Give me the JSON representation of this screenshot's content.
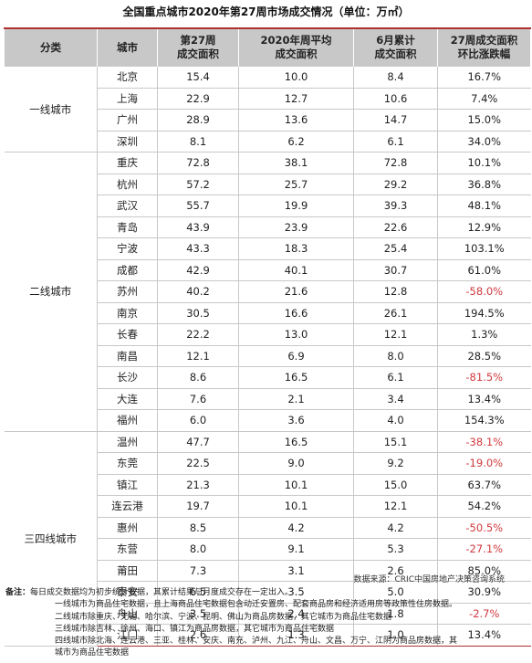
{
  "title": "全国重点城市2020年第27周市场成交情况（单位：万㎡）",
  "headers": {
    "category": "分类",
    "city": "城市",
    "week27": [
      "第27周",
      "成交面积"
    ],
    "weekly_avg": [
      "2020年周平均",
      "成交面积"
    ],
    "june_cum": [
      "6月累计",
      "成交面积"
    ],
    "change": [
      "27周成交面积",
      "环比涨跌幅"
    ]
  },
  "groups": [
    {
      "name": "一线城市",
      "rows": [
        {
          "city": "北京",
          "week27": "15.4",
          "avg": "10.0",
          "june": "8.4",
          "change": "16.7%",
          "negative": false
        },
        {
          "city": "上海",
          "week27": "22.9",
          "avg": "12.7",
          "june": "10.6",
          "change": "7.4%",
          "negative": false
        },
        {
          "city": "广州",
          "week27": "28.9",
          "avg": "13.6",
          "june": "14.7",
          "change": "15.0%",
          "negative": false
        },
        {
          "city": "深圳",
          "week27": "8.1",
          "avg": "6.2",
          "june": "6.1",
          "change": "34.0%",
          "negative": false
        }
      ]
    },
    {
      "name": "二线城市",
      "rows": [
        {
          "city": "重庆",
          "week27": "72.8",
          "avg": "38.1",
          "june": "72.8",
          "change": "10.1%",
          "negative": false
        },
        {
          "city": "杭州",
          "week27": "57.2",
          "avg": "25.7",
          "june": "29.2",
          "change": "36.8%",
          "negative": false
        },
        {
          "city": "武汉",
          "week27": "55.7",
          "avg": "19.9",
          "june": "39.3",
          "change": "48.1%",
          "negative": false
        },
        {
          "city": "青岛",
          "week27": "43.9",
          "avg": "23.9",
          "june": "22.6",
          "change": "12.9%",
          "negative": false
        },
        {
          "city": "宁波",
          "week27": "43.3",
          "avg": "18.3",
          "june": "25.4",
          "change": "103.1%",
          "negative": false
        },
        {
          "city": "成都",
          "week27": "42.9",
          "avg": "40.1",
          "june": "30.7",
          "change": "61.0%",
          "negative": false
        },
        {
          "city": "苏州",
          "week27": "40.2",
          "avg": "21.6",
          "june": "12.8",
          "change": "-58.0%",
          "negative": true
        },
        {
          "city": "南京",
          "week27": "30.5",
          "avg": "16.6",
          "june": "26.1",
          "change": "194.5%",
          "negative": false
        },
        {
          "city": "长春",
          "week27": "22.2",
          "avg": "13.0",
          "june": "12.1",
          "change": "1.3%",
          "negative": false
        },
        {
          "city": "南昌",
          "week27": "12.1",
          "avg": "6.9",
          "june": "8.0",
          "change": "28.5%",
          "negative": false
        },
        {
          "city": "长沙",
          "week27": "8.6",
          "avg": "16.5",
          "june": "6.1",
          "change": "-81.5%",
          "negative": true
        },
        {
          "city": "大连",
          "week27": "7.6",
          "avg": "2.1",
          "june": "3.4",
          "change": "13.4%",
          "negative": false
        },
        {
          "city": "福州",
          "week27": "6.0",
          "avg": "3.6",
          "june": "4.0",
          "change": "154.3%",
          "negative": false
        }
      ]
    },
    {
      "name": "三四线城市",
      "rows": [
        {
          "city": "温州",
          "week27": "47.7",
          "avg": "16.5",
          "june": "15.1",
          "change": "-38.1%",
          "negative": true
        },
        {
          "city": "东莞",
          "week27": "22.5",
          "avg": "9.0",
          "june": "9.2",
          "change": "-19.0%",
          "negative": true
        },
        {
          "city": "镇江",
          "week27": "21.3",
          "avg": "10.1",
          "june": "15.0",
          "change": "63.7%",
          "negative": false
        },
        {
          "city": "连云港",
          "week27": "19.7",
          "avg": "10.1",
          "june": "12.1",
          "change": "54.2%",
          "negative": false
        },
        {
          "city": "惠州",
          "week27": "8.5",
          "avg": "4.2",
          "june": "4.2",
          "change": "-50.5%",
          "negative": true
        },
        {
          "city": "东营",
          "week27": "8.0",
          "avg": "9.1",
          "june": "5.3",
          "change": "-27.1%",
          "negative": true
        },
        {
          "city": "莆田",
          "week27": "7.3",
          "avg": "3.1",
          "june": "2.6",
          "change": "85.0%",
          "negative": false
        },
        {
          "city": "泰安",
          "week27": "6.5",
          "avg": "3.5",
          "june": "5.0",
          "change": "30.9%",
          "negative": false
        },
        {
          "city": "舟山",
          "week27": "3.5",
          "avg": "2.4",
          "june": "1.8",
          "change": "-2.7%",
          "negative": true
        },
        {
          "city": "江门",
          "week27": "2.6",
          "avg": "1.3",
          "june": "1.0",
          "change": "13.4%",
          "negative": false
        }
      ]
    }
  ],
  "colors": {
    "negative": "#d0393e",
    "header_bg": "#c8c8c8",
    "rule": "#b03030"
  },
  "source": "数据来源：CRIC中国房地产决策咨询系统",
  "notes": {
    "label": "备注：",
    "first": "每日成交数据均为初步统计数据，其累计结果与月度成交存在一定出入。",
    "lines": [
      "一线城市为商品住宅数据，且上海商品住宅数据包含动迁安置房、配套商品房和经济适用房等政策性住房数据。",
      "二线城市除重庆、无锡、哈尔滨、宁波、昆明、佛山为商品房数据，其它城市为商品住宅数据",
      "三线城市除吉林、徐州、海口、镇江为商品房数据，其它城市为商品住宅数据",
      "四线城市除北海、连云港、三亚、桂林、安庆、南充、泸州、九江、舟山、文昌、万宁、江阴为商品房数据，其",
      "城市为商品住宅数据"
    ]
  }
}
